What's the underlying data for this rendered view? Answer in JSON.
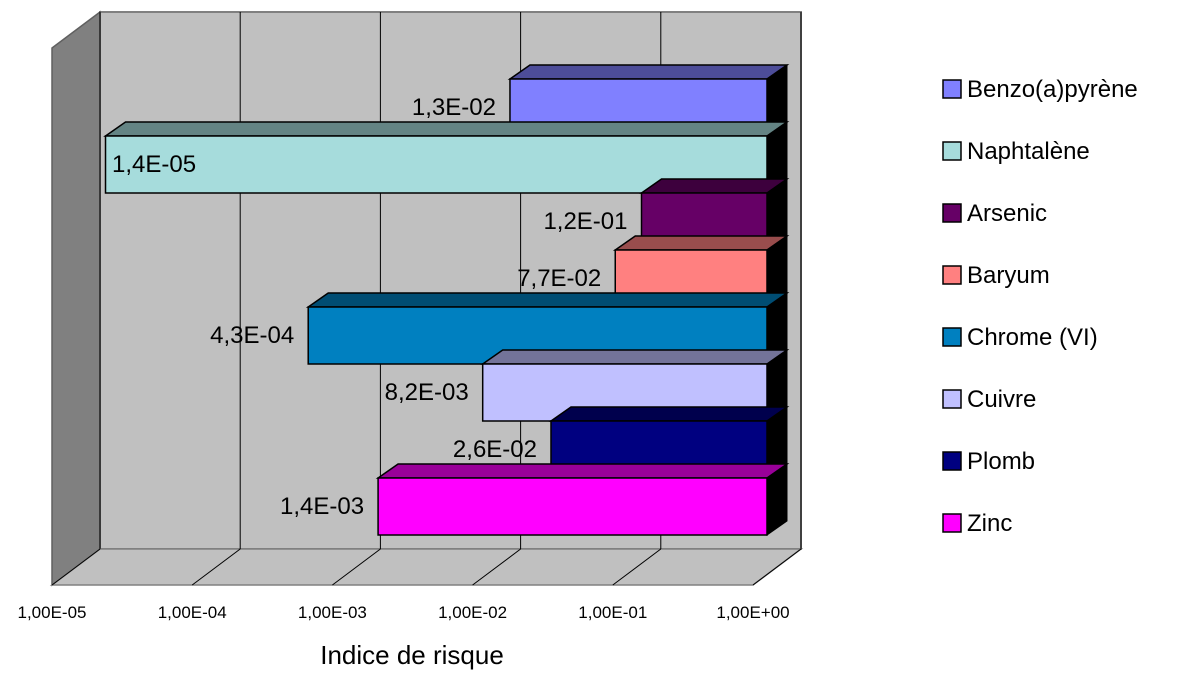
{
  "chart_data": {
    "type": "bar",
    "orientation": "horizontal",
    "style": "3d",
    "x_scale": "log",
    "xlabel": "Indice de risque",
    "xlim": [
      1e-05,
      1
    ],
    "x_ticks": [
      "1,00E-05",
      "1,00E-04",
      "1,00E-03",
      "1,00E-02",
      "1,00E-01",
      "1,00E+00"
    ],
    "grid": true,
    "legend_position": "right",
    "series": [
      {
        "name": "Benzo(a)pyrène",
        "value": 0.013,
        "label": "1,3E-02",
        "color": "#8080ff"
      },
      {
        "name": "Naphtalène",
        "value": 1.4e-05,
        "label": "1,4E-05",
        "color": "#a6dcdc"
      },
      {
        "name": "Arsenic",
        "value": 0.12,
        "label": "1,2E-01",
        "color": "#660066"
      },
      {
        "name": "Baryum",
        "value": 0.077,
        "label": "7,7E-02",
        "color": "#ff8080"
      },
      {
        "name": "Chrome (VI)",
        "value": 0.00043,
        "label": "4,3E-04",
        "color": "#0080c0"
      },
      {
        "name": "Cuivre",
        "value": 0.0082,
        "label": "8,2E-03",
        "color": "#c0c0ff"
      },
      {
        "name": "Plomb",
        "value": 0.026,
        "label": "2,6E-02",
        "color": "#000080"
      },
      {
        "name": "Zinc",
        "value": 0.0014,
        "label": "1,4E-03",
        "color": "#ff00ff"
      }
    ]
  }
}
